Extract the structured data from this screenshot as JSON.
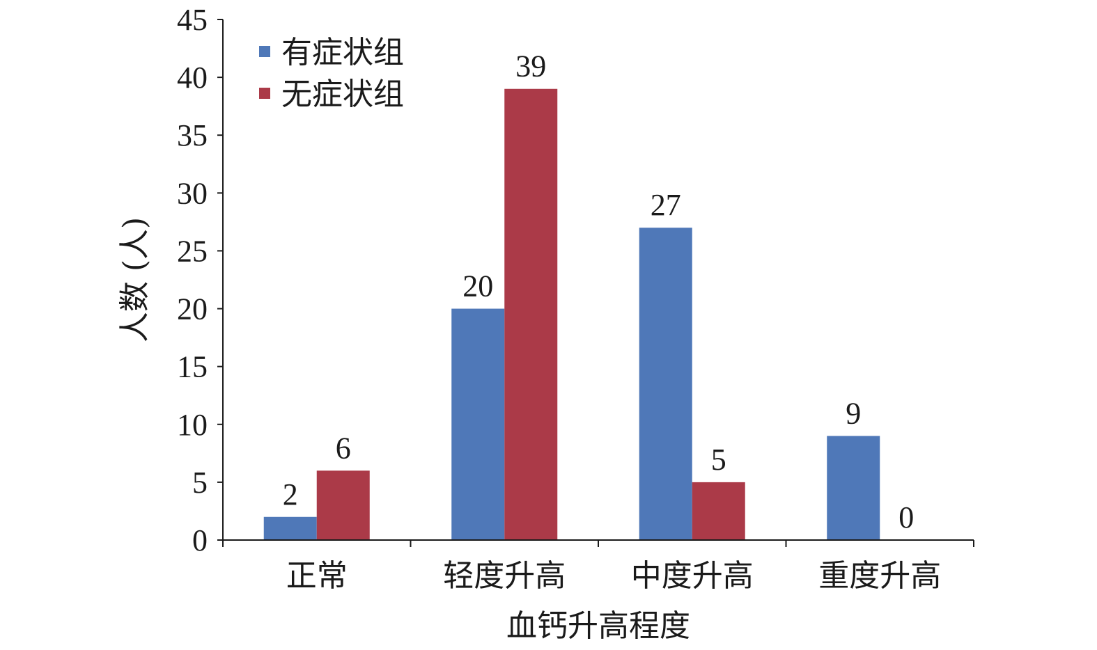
{
  "chart_data": {
    "type": "bar",
    "categories": [
      "正常",
      "轻度升高",
      "中度升高",
      "重度升高"
    ],
    "series": [
      {
        "name": "有症状组",
        "values": [
          2,
          20,
          27,
          9
        ],
        "color": "#4f78b8"
      },
      {
        "name": "无症状组",
        "values": [
          6,
          39,
          5,
          0
        ],
        "color": "#ab3a48"
      }
    ],
    "xlabel": "血钙升高程度",
    "ylabel": "人数 (人)",
    "ylim": [
      0,
      45
    ],
    "yticks": [
      0,
      5,
      10,
      15,
      20,
      25,
      30,
      35,
      40,
      45
    ],
    "grid": false,
    "legend_position": "top-left",
    "data_labels": true
  }
}
